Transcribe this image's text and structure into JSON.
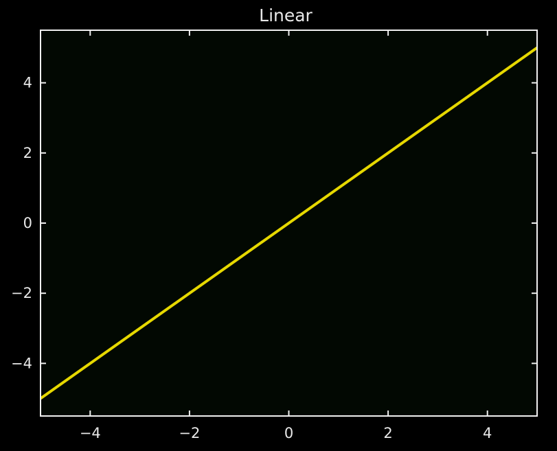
{
  "chart_data": {
    "type": "line",
    "title": "Linear",
    "xlabel": "",
    "ylabel": "",
    "xlim": [
      -5,
      5
    ],
    "ylim": [
      -5.5,
      5.5
    ],
    "xticks": [
      -4,
      -2,
      0,
      2,
      4
    ],
    "yticks": [
      -4,
      -2,
      0,
      2,
      4
    ],
    "xtick_labels": [
      "−4",
      "−2",
      "0",
      "2",
      "4"
    ],
    "ytick_labels": [
      "−4",
      "−2",
      "0",
      "2",
      "4"
    ],
    "grid": false,
    "series": [
      {
        "x": [
          -5,
          5
        ],
        "y": [
          -5,
          5
        ],
        "color": "#e6d800"
      }
    ],
    "colors": {
      "figure_background": "#000000",
      "axes_background": "#020802",
      "axes_edge": "#f0f0f0",
      "text": "#e8e8e8"
    }
  }
}
